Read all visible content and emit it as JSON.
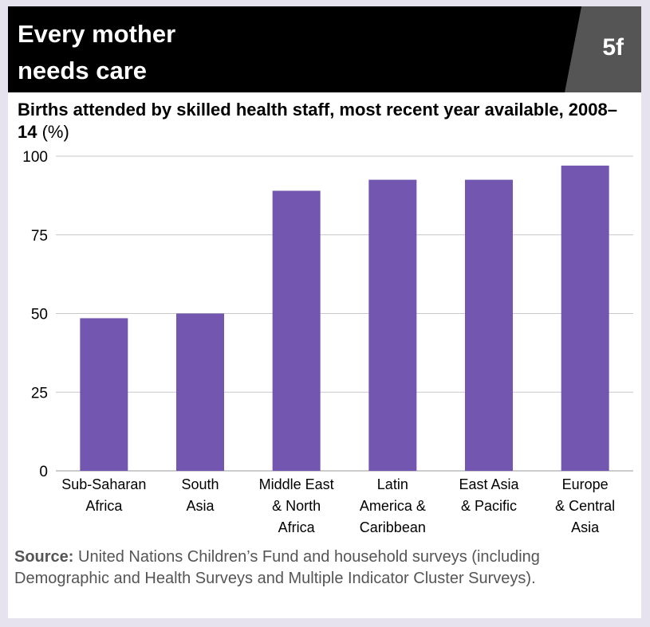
{
  "header": {
    "title_line1": "Every mother",
    "title_line2": "needs care",
    "badge": "5f"
  },
  "chart_title": {
    "bold": "Births attended by skilled health staff, most recent year available, 2008–14",
    "unit": "(%)"
  },
  "source": {
    "label": "Source:",
    "text": "United Nations Children’s Fund and household surveys (including Demographic and Health Surveys and Multiple Indicator Cluster Surveys)."
  },
  "colors": {
    "bar": "#7356b0",
    "grid": "#c8c8c8",
    "header_bg": "#000000",
    "badge_bg": "#555555"
  },
  "chart_data": {
    "type": "bar",
    "title": "Births attended by skilled health staff, most recent year available, 2008–14 (%)",
    "xlabel": "",
    "ylabel": "",
    "ylim": [
      0,
      100
    ],
    "yticks": [
      0,
      25,
      50,
      75,
      100
    ],
    "grid": true,
    "categories": [
      [
        "Sub-Saharan",
        "Africa"
      ],
      [
        "South",
        "Asia"
      ],
      [
        "Middle East",
        "& North",
        "Africa"
      ],
      [
        "Latin",
        "America &",
        "Caribbean"
      ],
      [
        "East Asia",
        "& Pacific"
      ],
      [
        "Europe",
        "& Central",
        "Asia"
      ]
    ],
    "values": [
      48.5,
      50,
      89,
      92.5,
      92.5,
      97
    ]
  }
}
